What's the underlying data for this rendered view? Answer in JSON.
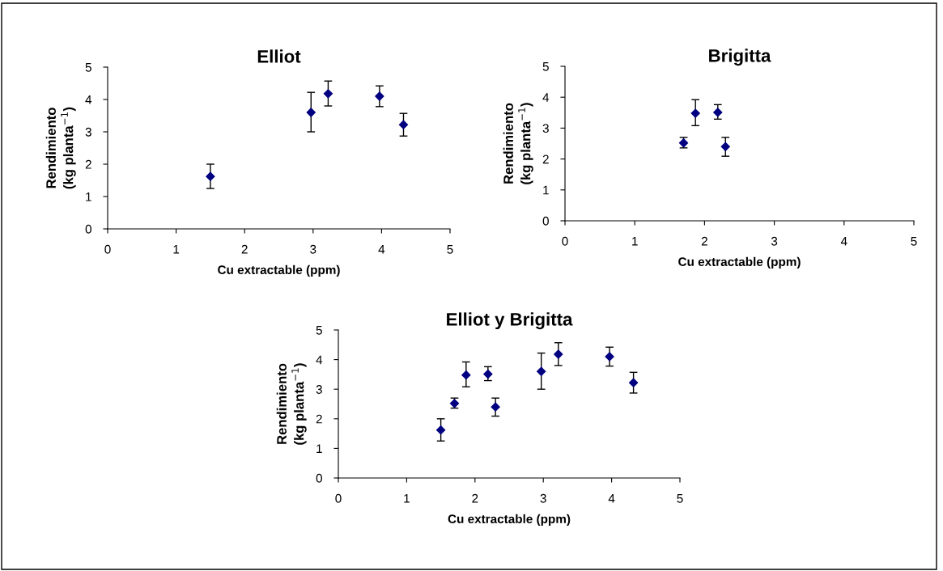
{
  "chart_data": [
    {
      "type": "scatter",
      "title": "Elliot",
      "xlabel": "Cu extractable (ppm)",
      "ylabel": "Rendimiento\n(kg planta$^{−1}$)",
      "marker": "diamond",
      "grid": false,
      "legend": false,
      "x": [
        1.5,
        2.97,
        3.22,
        3.97,
        4.32
      ],
      "series": [
        {
          "color": "#000080",
          "values": [
            1.62,
            3.6,
            4.18,
            4.1,
            3.22
          ],
          "errors": [
            [
              1.25,
              2.0
            ],
            [
              3.0,
              4.22
            ],
            [
              3.8,
              4.57
            ],
            [
              3.78,
              4.42
            ],
            [
              2.87,
              3.57
            ]
          ]
        }
      ],
      "xlim": [
        0,
        5
      ],
      "xticks": [
        0,
        1,
        2,
        3,
        4,
        5
      ],
      "ylim": [
        0,
        5
      ],
      "yticks": [
        0,
        1,
        2,
        3,
        4,
        5
      ]
    },
    {
      "type": "scatter",
      "title": "Brigitta",
      "xlabel": "Cu extractable (ppm)",
      "ylabel": "Rendimiento\n(kg planta$^{−1}$)",
      "marker": "diamond",
      "grid": false,
      "legend": false,
      "x": [
        1.7,
        1.87,
        2.19,
        2.3
      ],
      "series": [
        {
          "color": "#000080",
          "values": [
            2.52,
            3.48,
            3.51,
            2.4
          ],
          "errors": [
            [
              2.36,
              2.7
            ],
            [
              3.08,
              3.92
            ],
            [
              3.29,
              3.76
            ],
            [
              2.09,
              2.7
            ]
          ]
        }
      ],
      "xlim": [
        0,
        5
      ],
      "xticks": [
        0,
        1,
        2,
        3,
        4,
        5
      ],
      "ylim": [
        0,
        5
      ],
      "yticks": [
        0,
        1,
        2,
        3,
        4,
        5
      ]
    },
    {
      "type": "scatter",
      "title": "Elliot y Brigitta",
      "xlabel": "Cu extractable (ppm)",
      "ylabel": "Rendimiento\n(kg planta$^{−1}$)",
      "marker": "diamond",
      "grid": false,
      "legend": false,
      "x": [
        1.5,
        1.7,
        1.87,
        2.19,
        2.3,
        2.97,
        3.22,
        3.97,
        4.32
      ],
      "series": [
        {
          "color": "#000080",
          "values": [
            1.62,
            2.52,
            3.48,
            3.51,
            2.4,
            3.6,
            4.18,
            4.1,
            3.22
          ],
          "errors": [
            [
              1.25,
              2.0
            ],
            [
              2.36,
              2.7
            ],
            [
              3.08,
              3.92
            ],
            [
              3.29,
              3.76
            ],
            [
              2.09,
              2.7
            ],
            [
              3.0,
              4.22
            ],
            [
              3.8,
              4.57
            ],
            [
              3.78,
              4.42
            ],
            [
              2.87,
              3.57
            ]
          ]
        }
      ],
      "xlim": [
        0,
        5
      ],
      "xticks": [
        0,
        1,
        2,
        3,
        4,
        5
      ],
      "ylim": [
        0,
        5
      ],
      "yticks": [
        0,
        1,
        2,
        3,
        4,
        5
      ]
    }
  ]
}
